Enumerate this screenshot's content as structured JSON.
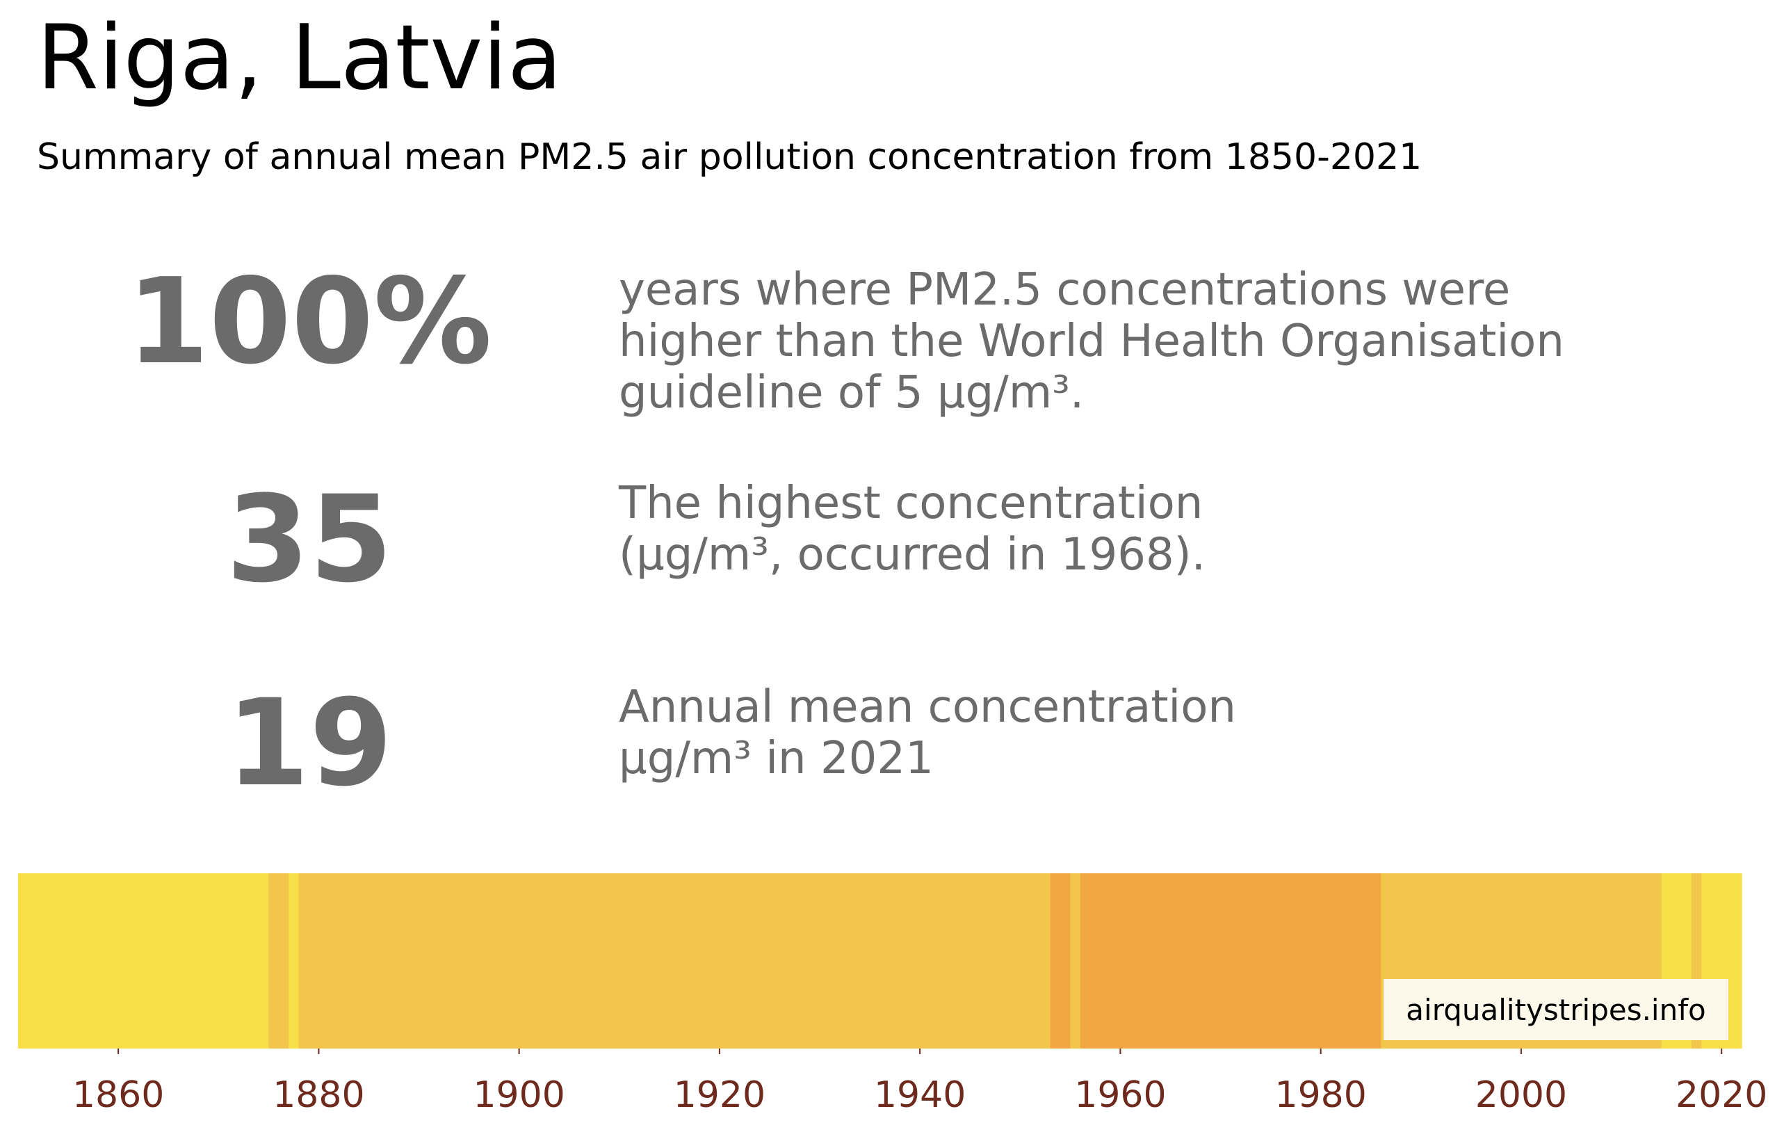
{
  "header": {
    "title": "Riga, Latvia",
    "subtitle": "Summary of annual mean PM2.5 air pollution concentration from 1850-2021"
  },
  "stats": [
    {
      "value": "100%",
      "description": "years where PM2.5 concentrations were\nhigher than the World Health Organisation\nguideline of 5 µg/m³."
    },
    {
      "value": "35",
      "description": "The highest concentration\n(µg/m³, occurred in 1968)."
    },
    {
      "value": "19",
      "description": "Annual mean concentration\nµg/m³ in 2021"
    }
  ],
  "badge": "airqualitystripes.info",
  "colors": {
    "stat_text": "#6b6b6b",
    "tick_label": "#6e2a1c",
    "badge_background": "#fdf8ea"
  },
  "chart_data": {
    "type": "heatmap",
    "description_of_encoding": "warming-stripes style bar; each vertical stripe is one year colored by annual mean PM2.5 concentration band",
    "x_range": [
      1850,
      2021
    ],
    "x_ticks": [
      1860,
      1880,
      1900,
      1920,
      1940,
      1960,
      1980,
      2000,
      2020
    ],
    "segments": [
      {
        "start": 1850,
        "end": 1875,
        "color": "#f8df48"
      },
      {
        "start": 1875,
        "end": 1877,
        "color": "#f2c64a"
      },
      {
        "start": 1877,
        "end": 1878,
        "color": "#f8df48"
      },
      {
        "start": 1878,
        "end": 1953,
        "color": "#f2c64a"
      },
      {
        "start": 1953,
        "end": 1955,
        "color": "#f1a741"
      },
      {
        "start": 1955,
        "end": 1956,
        "color": "#f2c64a"
      },
      {
        "start": 1956,
        "end": 1986,
        "color": "#f1a741"
      },
      {
        "start": 1986,
        "end": 2014,
        "color": "#f2c64a"
      },
      {
        "start": 2014,
        "end": 2017,
        "color": "#f8df48"
      },
      {
        "start": 2017,
        "end": 2018,
        "color": "#f2c64a"
      },
      {
        "start": 2018,
        "end": 2022,
        "color": "#f8df48"
      }
    ],
    "grid": false,
    "legend": "none"
  }
}
